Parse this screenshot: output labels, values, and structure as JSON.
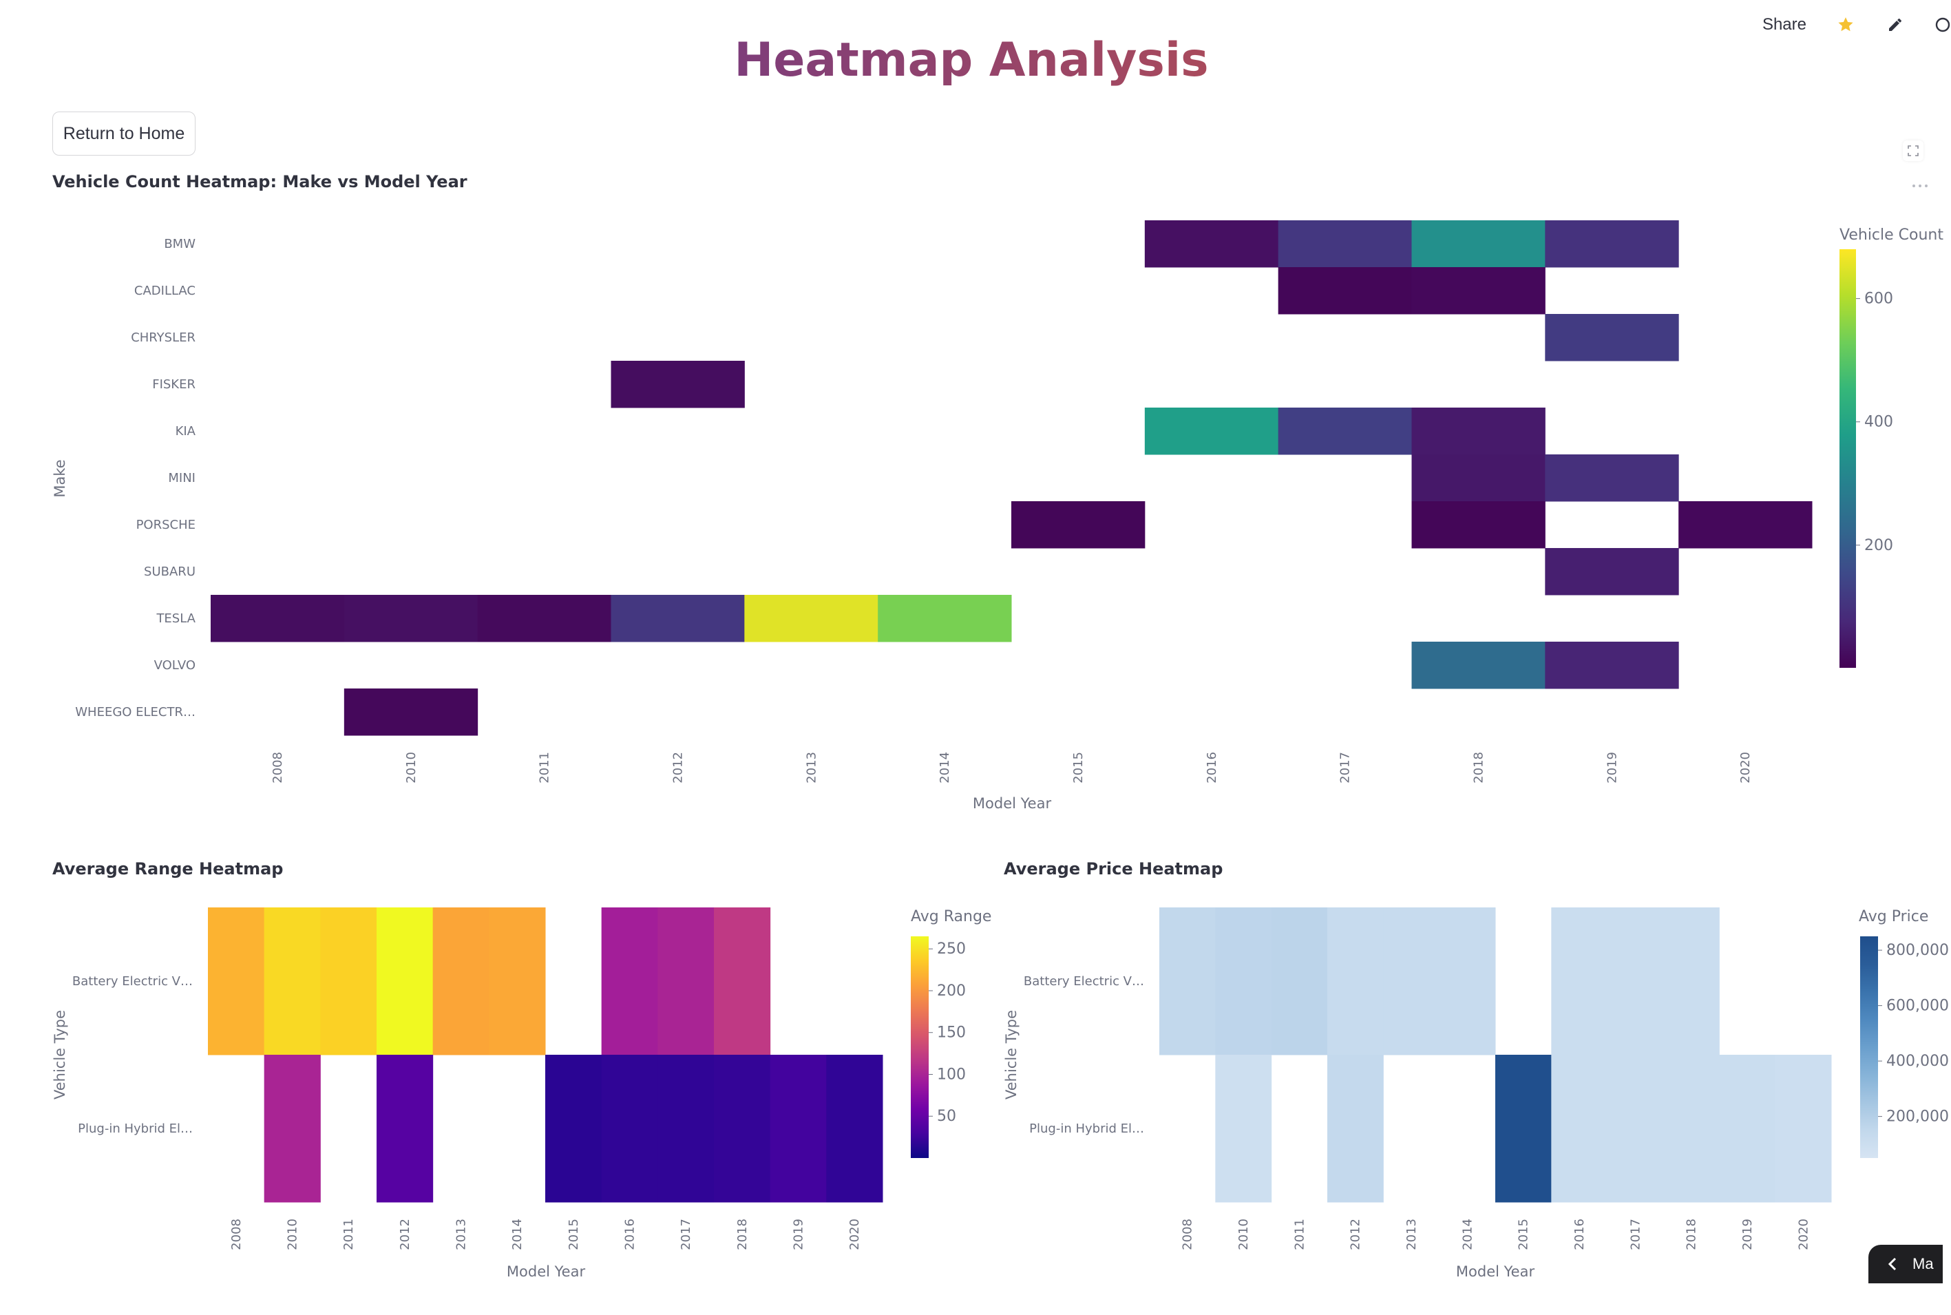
{
  "header": {
    "share_label": "Share",
    "star_icon": "star-icon",
    "edit_icon": "pencil-icon"
  },
  "page": {
    "title": "Heatmap Analysis",
    "return_button": "Return to Home"
  },
  "bottom_pill": {
    "label": "Ma"
  },
  "charts": {
    "count": {
      "title": "Vehicle Count Heatmap: Make vs Model Year",
      "xlabel": "Model Year",
      "ylabel": "Make",
      "legend_title": "Vehicle Count",
      "legend_ticks": [
        "600",
        "400",
        "200"
      ]
    },
    "range": {
      "title": "Average Range Heatmap",
      "xlabel": "Model Year",
      "ylabel": "Vehicle Type",
      "legend_title": "Avg Range",
      "legend_ticks": [
        "250",
        "200",
        "150",
        "100",
        "50"
      ]
    },
    "price": {
      "title": "Average Price Heatmap",
      "xlabel": "Model Year",
      "ylabel": "Vehicle Type",
      "legend_title": "Avg Price",
      "legend_ticks": [
        "800,000",
        "600,000",
        "400,000",
        "200,000"
      ]
    }
  },
  "chart_data": [
    {
      "type": "heatmap",
      "title": "Vehicle Count Heatmap: Make vs Model Year",
      "xlabel": "Model Year",
      "ylabel": "Make",
      "colorscale": "viridis",
      "zlim": [
        1,
        680
      ],
      "x": [
        "2008",
        "2010",
        "2011",
        "2012",
        "2013",
        "2014",
        "2015",
        "2016",
        "2017",
        "2018",
        "2019",
        "2020"
      ],
      "y": [
        "BMW",
        "CADILLAC",
        "CHRYSLER",
        "FISKER",
        "KIA",
        "MINI",
        "PORSCHE",
        "SUBARU",
        "TESLA",
        "VOLVO",
        "WHEEGO ELECTR…"
      ],
      "z": [
        [
          null,
          null,
          null,
          null,
          null,
          null,
          null,
          30,
          110,
          340,
          100,
          null
        ],
        [
          null,
          null,
          null,
          null,
          null,
          null,
          null,
          null,
          10,
          15,
          null,
          null
        ],
        [
          null,
          null,
          null,
          null,
          null,
          null,
          null,
          null,
          null,
          null,
          120,
          null
        ],
        [
          null,
          null,
          null,
          25,
          null,
          null,
          null,
          null,
          null,
          null,
          null,
          null
        ],
        [
          null,
          null,
          null,
          null,
          null,
          null,
          null,
          380,
          130,
          50,
          null,
          null
        ],
        [
          null,
          null,
          null,
          null,
          null,
          null,
          null,
          null,
          null,
          45,
          95,
          null
        ],
        [
          null,
          null,
          null,
          null,
          null,
          null,
          10,
          null,
          null,
          10,
          null,
          15
        ],
        [
          null,
          null,
          null,
          null,
          null,
          null,
          null,
          null,
          null,
          null,
          60,
          null
        ],
        [
          25,
          30,
          18,
          110,
          650,
          540,
          null,
          null,
          null,
          null,
          null,
          null
        ],
        [
          null,
          null,
          null,
          null,
          null,
          null,
          null,
          null,
          null,
          240,
          70,
          null
        ],
        [
          null,
          15,
          null,
          null,
          null,
          null,
          null,
          null,
          null,
          null,
          null,
          null
        ]
      ]
    },
    {
      "type": "heatmap",
      "title": "Average Range Heatmap",
      "xlabel": "Model Year",
      "ylabel": "Vehicle Type",
      "colorscale": "plasma",
      "zlim": [
        0,
        265
      ],
      "x": [
        "2008",
        "2010",
        "2011",
        "2012",
        "2013",
        "2014",
        "2015",
        "2016",
        "2017",
        "2018",
        "2019",
        "2020"
      ],
      "y": [
        "Battery Electric V…",
        "Plug-in Hybrid El…"
      ],
      "z": [
        [
          220,
          245,
          240,
          265,
          210,
          212,
          null,
          95,
          100,
          120,
          null,
          null
        ],
        [
          null,
          100,
          null,
          40,
          null,
          null,
          15,
          18,
          18,
          20,
          28,
          18
        ]
      ]
    },
    {
      "type": "heatmap",
      "title": "Average Price Heatmap",
      "xlabel": "Model Year",
      "ylabel": "Vehicle Type",
      "colorscale": "blues",
      "zlim": [
        50000,
        850000
      ],
      "x": [
        "2008",
        "2010",
        "2011",
        "2012",
        "2013",
        "2014",
        "2015",
        "2016",
        "2017",
        "2018",
        "2019",
        "2020"
      ],
      "y": [
        "Battery Electric V…",
        "Plug-in Hybrid El…"
      ],
      "z": [
        [
          150000,
          165000,
          170000,
          125000,
          125000,
          125000,
          null,
          110000,
          110000,
          110000,
          null,
          null
        ],
        [
          null,
          95000,
          null,
          140000,
          null,
          null,
          845000,
          110000,
          110000,
          110000,
          110000,
          100000
        ]
      ]
    }
  ]
}
